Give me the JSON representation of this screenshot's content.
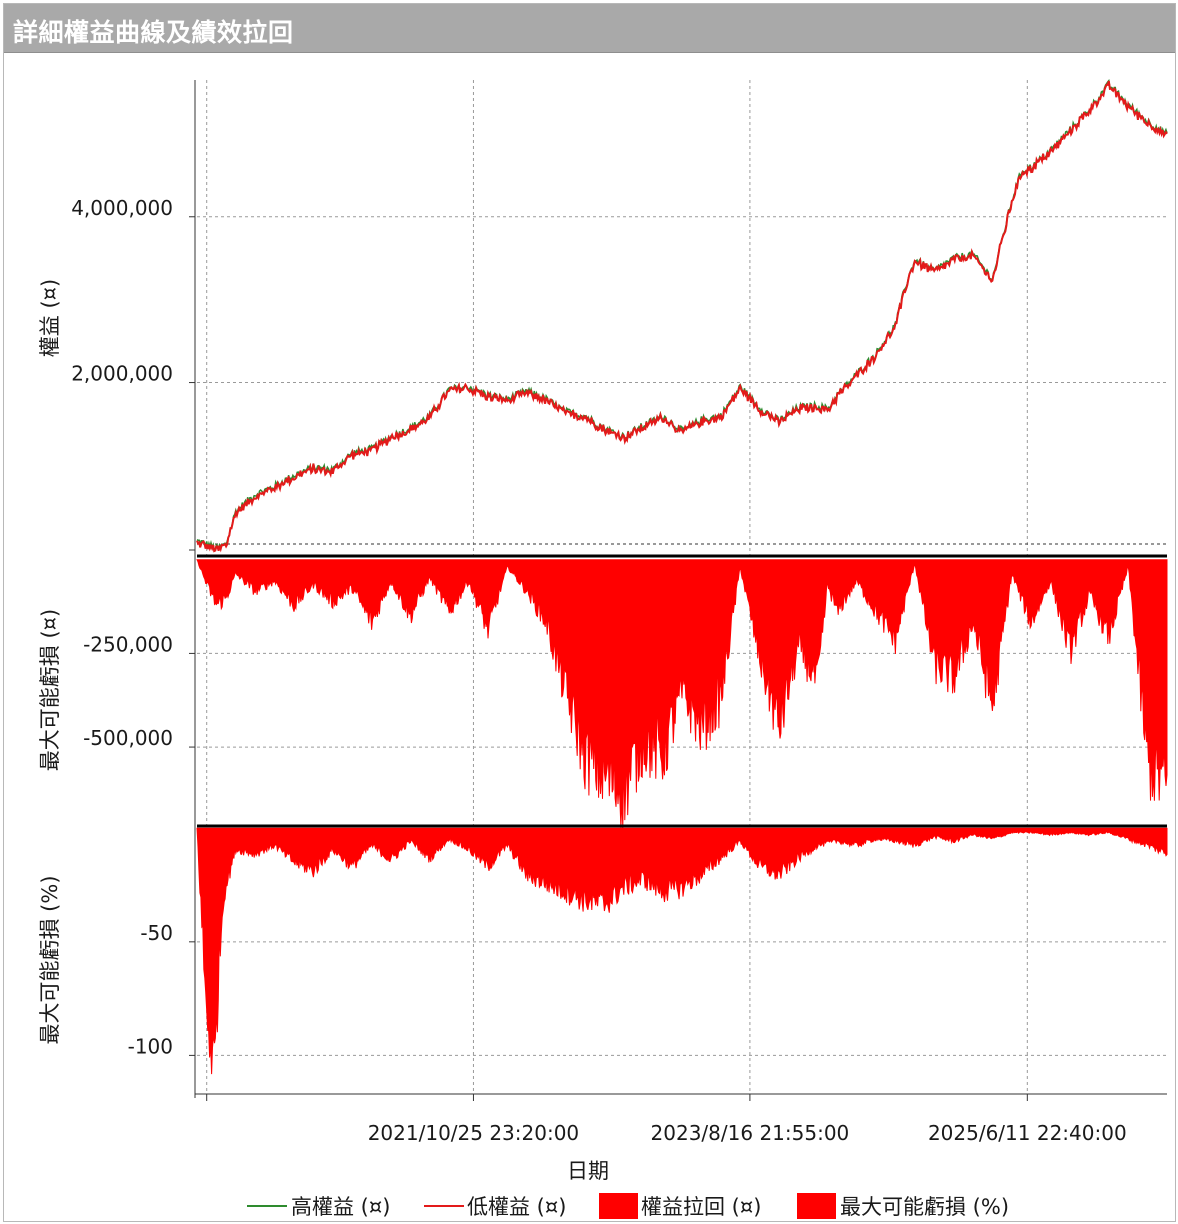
{
  "window": {
    "title": "詳細權益曲線及績效拉回"
  },
  "colors": {
    "high_equity": "#2e8b2e",
    "low_equity": "#e31a1a",
    "fill_red": "#ff0000",
    "grid": "#9a9a9a"
  },
  "chart_data": [
    {
      "type": "line",
      "panel": "equity",
      "ylabel": "權益 (¤)",
      "ylim": [
        -20000,
        5650000
      ],
      "yticks": [
        4000000,
        2000000
      ],
      "ytick_labels": [
        "4,000,000",
        "2,000,000"
      ],
      "x_index_range": [
        0,
        100
      ],
      "series": [
        {
          "name": "高權益 (¤)",
          "color": "#2e8b2e",
          "x": [
            0,
            1,
            2,
            3,
            4,
            6,
            8,
            10,
            12,
            14,
            16,
            18,
            20,
            22,
            24,
            26,
            28,
            30,
            32,
            34,
            36,
            38,
            40,
            42,
            44,
            46,
            48,
            50,
            52,
            54,
            56,
            58,
            60,
            62,
            64,
            65,
            66,
            68,
            70,
            72,
            73,
            74,
            76,
            78,
            80,
            82,
            84,
            85,
            86,
            88,
            90,
            92,
            94,
            96,
            98,
            100
          ],
          "y": [
            90000,
            50000,
            0,
            50000,
            450000,
            650000,
            750000,
            880000,
            980000,
            950000,
            1150000,
            1200000,
            1350000,
            1450000,
            1600000,
            1920000,
            1950000,
            1850000,
            1800000,
            1900000,
            1800000,
            1650000,
            1600000,
            1450000,
            1350000,
            1480000,
            1600000,
            1420000,
            1550000,
            1600000,
            1950000,
            1700000,
            1540000,
            1700000,
            1720000,
            1680000,
            1850000,
            2100000,
            2350000,
            2700000,
            3150000,
            3480000,
            3350000,
            3500000,
            3550000,
            3250000,
            4200000,
            4550000,
            4600000,
            4800000,
            5050000,
            5300000,
            5600000,
            5350000,
            5150000,
            5000000
          ]
        },
        {
          "name": "低權益 (¤)",
          "color": "#e31a1a"
        }
      ]
    },
    {
      "type": "area",
      "panel": "drawdown_abs",
      "ylabel": "最大可能虧損 (¤)",
      "ylim": [
        -700000,
        10000
      ],
      "yticks": [
        -250000,
        -500000
      ],
      "ytick_labels": [
        "-250,000",
        "-500,000"
      ],
      "series": [
        {
          "name": "權益拉回 (¤)",
          "color": "#ff0000",
          "x": [
            0,
            1,
            2,
            3,
            4,
            6,
            8,
            10,
            12,
            14,
            16,
            18,
            20,
            22,
            24,
            26,
            28,
            30,
            32,
            34,
            36,
            38,
            40,
            42,
            44,
            46,
            48,
            50,
            52,
            54,
            56,
            58,
            60,
            62,
            64,
            65,
            66,
            68,
            70,
            72,
            74,
            76,
            78,
            80,
            82,
            84,
            86,
            88,
            90,
            92,
            94,
            96,
            98,
            100
          ],
          "y": [
            0,
            -70000,
            -130000,
            -110000,
            -40000,
            -90000,
            -60000,
            -130000,
            -70000,
            -120000,
            -80000,
            -180000,
            -60000,
            -160000,
            -50000,
            -150000,
            -60000,
            -200000,
            -20000,
            -90000,
            -180000,
            -380000,
            -560000,
            -620000,
            -660000,
            -520000,
            -560000,
            -380000,
            -480000,
            -400000,
            -20000,
            -280000,
            -480000,
            -250000,
            -350000,
            -70000,
            -150000,
            -60000,
            -150000,
            -230000,
            -10000,
            -300000,
            -340000,
            -180000,
            -420000,
            -40000,
            -180000,
            -60000,
            -260000,
            -100000,
            -220000,
            -20000,
            -580000,
            -650000
          ]
        }
      ]
    },
    {
      "type": "area",
      "panel": "drawdown_pct",
      "ylabel": "最大可能虧損 (%)",
      "xlabel": "日期",
      "ylim": [
        -117,
        1
      ],
      "yticks": [
        -50,
        -100
      ],
      "ytick_labels": [
        "-50",
        "-100"
      ],
      "x_tick_labels": [
        "2021/10/25 23:20:00",
        "2023/8/16 21:55:00",
        "2025/6/11 22:40:00"
      ],
      "x_tick_positions": [
        28.5,
        57,
        85.6
      ],
      "series": [
        {
          "name": "最大可能虧損 (%)",
          "color": "#ff0000",
          "x": [
            0,
            0.5,
            1,
            1.4,
            1.8,
            2.3,
            2.8,
            3.4,
            4,
            6,
            8,
            10,
            12,
            14,
            16,
            18,
            20,
            22,
            24,
            26,
            28,
            30,
            32,
            34,
            36,
            38,
            40,
            42,
            44,
            46,
            48,
            50,
            52,
            54,
            56,
            58,
            60,
            62,
            64,
            66,
            68,
            70,
            72,
            74,
            76,
            78,
            80,
            82,
            84,
            86,
            88,
            90,
            92,
            94,
            96,
            98,
            100
          ],
          "y": [
            0,
            -45,
            -90,
            -100,
            -114,
            -60,
            -30,
            -20,
            -10,
            -12,
            -8,
            -16,
            -20,
            -10,
            -18,
            -8,
            -15,
            -6,
            -14,
            -5,
            -10,
            -18,
            -8,
            -22,
            -26,
            -30,
            -34,
            -36,
            -28,
            -24,
            -30,
            -28,
            -22,
            -14,
            -6,
            -18,
            -22,
            -14,
            -8,
            -6,
            -8,
            -5,
            -6,
            -8,
            -4,
            -6,
            -3,
            -5,
            -2,
            -2,
            -3,
            -2,
            -3,
            -2,
            -5,
            -8,
            -12
          ]
        }
      ]
    }
  ],
  "legend": {
    "items": [
      "高權益 (¤)",
      "低權益 (¤)",
      "權益拉回 (¤)",
      "最大可能虧損 (%)"
    ]
  }
}
